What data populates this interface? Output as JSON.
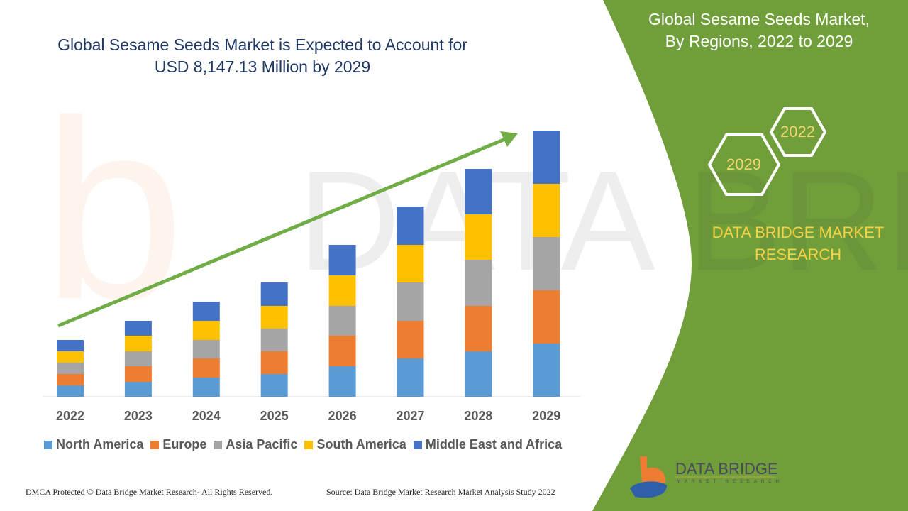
{
  "title_line1": "Global Sesame Seeds Market is Expected to Account for",
  "title_line2": "USD 8,147.13 Million by 2029",
  "side_panel": {
    "title_line1": "Global Sesame Seeds Market,",
    "title_line2": "By Regions, 2022 to 2029",
    "hex_start": "2022",
    "hex_end": "2029",
    "brand_line1": "DATA BRIDGE MARKET",
    "brand_line2": "RESEARCH",
    "logo_text": "DATA BRIDGE",
    "logo_sub": "MARKET RESEARCH",
    "color": "#6f9e3a"
  },
  "footer": {
    "left": "DMCA Protected © Data Bridge Market Research- All Rights Reserved.",
    "right": "Source: Data Bridge Market Research Market Analysis Study 2022"
  },
  "chart_data": {
    "type": "bar",
    "stacked": true,
    "categories": [
      "2022",
      "2023",
      "2024",
      "2025",
      "2026",
      "2027",
      "2028",
      "2029"
    ],
    "series": [
      {
        "name": "North America",
        "color": "#5b9bd5",
        "values": [
          16,
          21,
          27,
          32,
          43,
          54,
          64,
          75
        ]
      },
      {
        "name": "Europe",
        "color": "#ed7d31",
        "values": [
          16,
          22,
          27,
          32,
          43,
          53,
          64,
          75
        ]
      },
      {
        "name": "Asia Pacific",
        "color": "#a5a5a5",
        "values": [
          16,
          21,
          26,
          32,
          42,
          54,
          65,
          75
        ]
      },
      {
        "name": "South America",
        "color": "#ffc000",
        "values": [
          16,
          22,
          27,
          32,
          43,
          53,
          64,
          75
        ]
      },
      {
        "name": "Middle East and Africa",
        "color": "#4472c4",
        "values": [
          16,
          21,
          27,
          33,
          43,
          54,
          64,
          75
        ]
      }
    ],
    "y_axis_shown": false,
    "grid": false,
    "legend_position": "bottom",
    "trend_arrow": true,
    "trend_arrow_color": "#70ad47"
  }
}
